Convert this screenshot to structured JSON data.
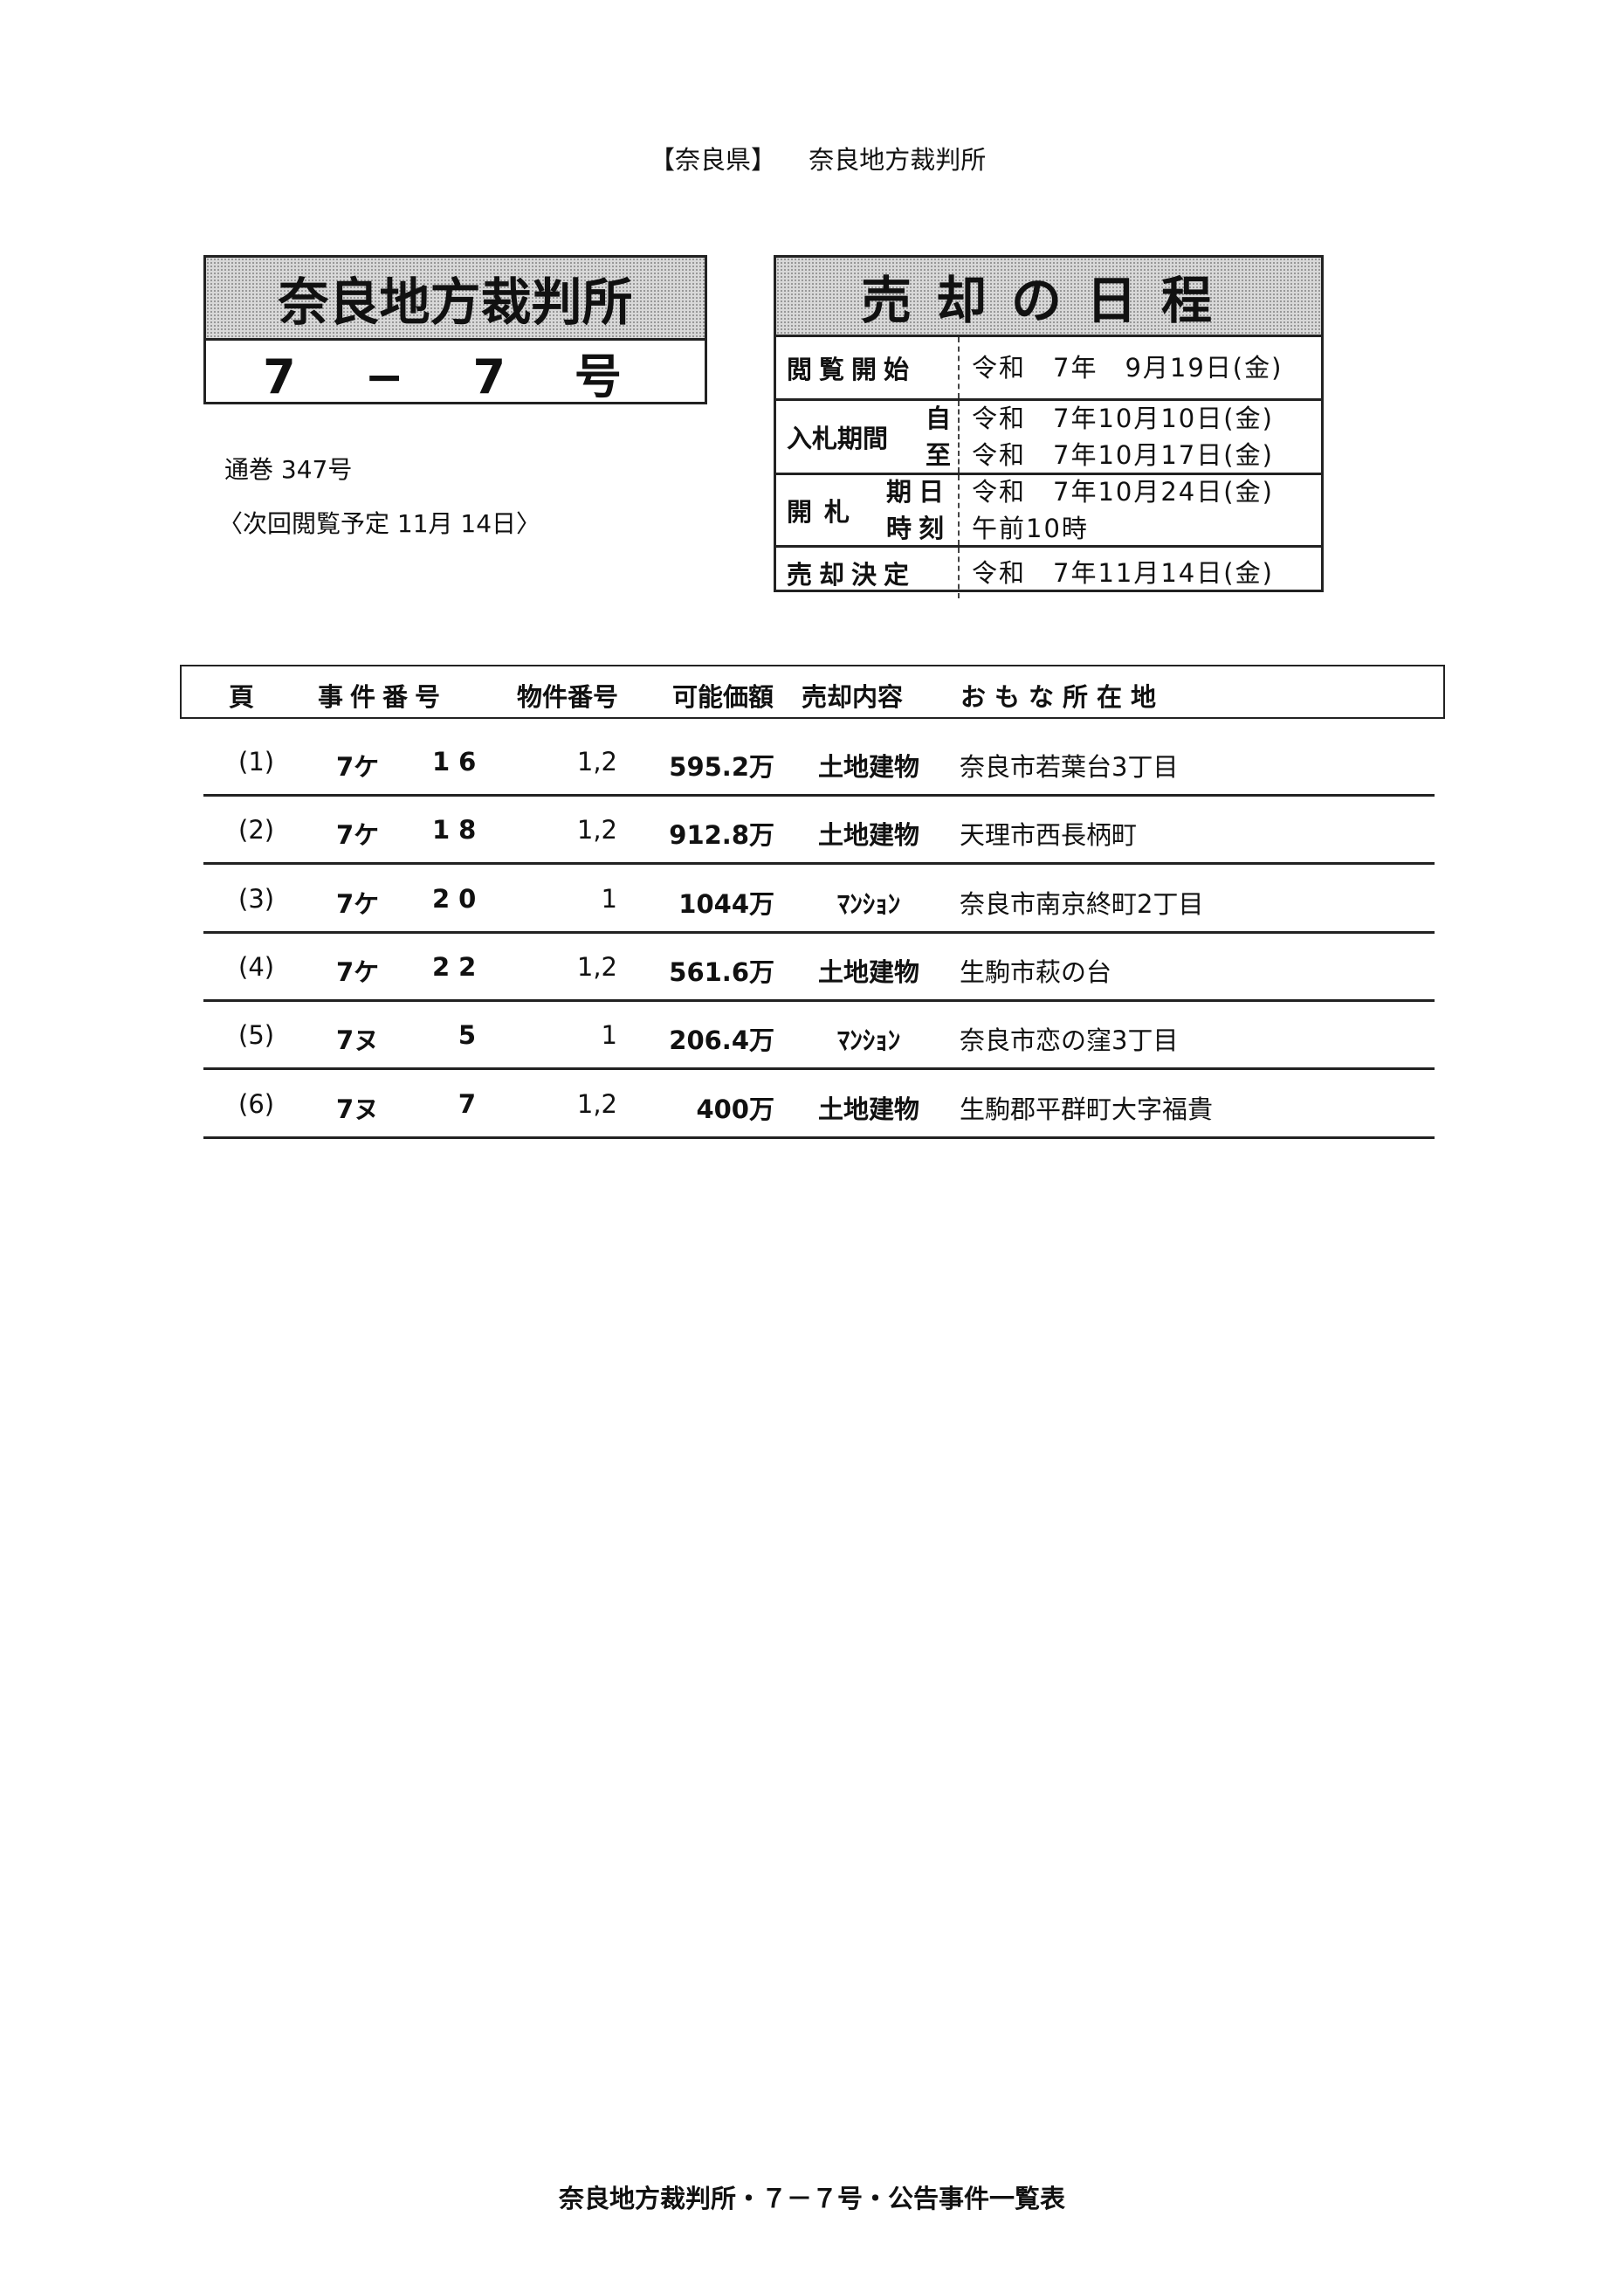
{
  "header": {
    "prefecture": "【奈良県】",
    "court": "奈良地方裁判所"
  },
  "court_box": {
    "name": "奈良地方裁判所",
    "issue": "7 − 7 号"
  },
  "issue_info": {
    "volume": "通巻 347号",
    "next_viewing": "〈次回閲覧予定 11月 14日〉"
  },
  "schedule": {
    "title": "売却の日程",
    "viewing_start": {
      "label": "閲覧開始",
      "value": "令和　7年　9月19日(金)"
    },
    "bid_period": {
      "label": "入札期間",
      "from_label": "自",
      "to_label": "至",
      "from": "令和　7年10月10日(金)",
      "to": "令和　7年10月17日(金)"
    },
    "opening": {
      "label": "開札",
      "date_label": "期日",
      "time_label": "時刻",
      "date": "令和　7年10月24日(金)",
      "time": "午前10時"
    },
    "decision": {
      "label": "売却決定",
      "value": "令和　7年11月14日(金)"
    }
  },
  "table": {
    "headers": [
      "頁",
      "事件番号",
      "物件番号",
      "可能価額",
      "売却内容",
      "おもな所在地"
    ],
    "rows": [
      {
        "page": "(1)",
        "case_prefix": "7ケ",
        "case_no": "16",
        "item": "1,2",
        "price": "595.2万",
        "type": "土地建物",
        "location": "奈良市若葉台3丁目"
      },
      {
        "page": "(2)",
        "case_prefix": "7ケ",
        "case_no": "18",
        "item": "1,2",
        "price": "912.8万",
        "type": "土地建物",
        "location": "天理市西長柄町"
      },
      {
        "page": "(3)",
        "case_prefix": "7ケ",
        "case_no": "20",
        "item": "1",
        "price": "1044万",
        "type": "ﾏﾝｼｮﾝ",
        "location": "奈良市南京終町2丁目"
      },
      {
        "page": "(4)",
        "case_prefix": "7ケ",
        "case_no": "22",
        "item": "1,2",
        "price": "561.6万",
        "type": "土地建物",
        "location": "生駒市萩の台"
      },
      {
        "page": "(5)",
        "case_prefix": "7ヌ",
        "case_no": "5",
        "item": "1",
        "price": "206.4万",
        "type": "ﾏﾝｼｮﾝ",
        "location": "奈良市恋の窪3丁目"
      },
      {
        "page": "(6)",
        "case_prefix": "7ヌ",
        "case_no": "7",
        "item": "1,2",
        "price": "400万",
        "type": "土地建物",
        "location": "生駒郡平群町大字福貴"
      }
    ]
  },
  "footer": "奈良地方裁判所・７－７号・公告事件一覧表"
}
